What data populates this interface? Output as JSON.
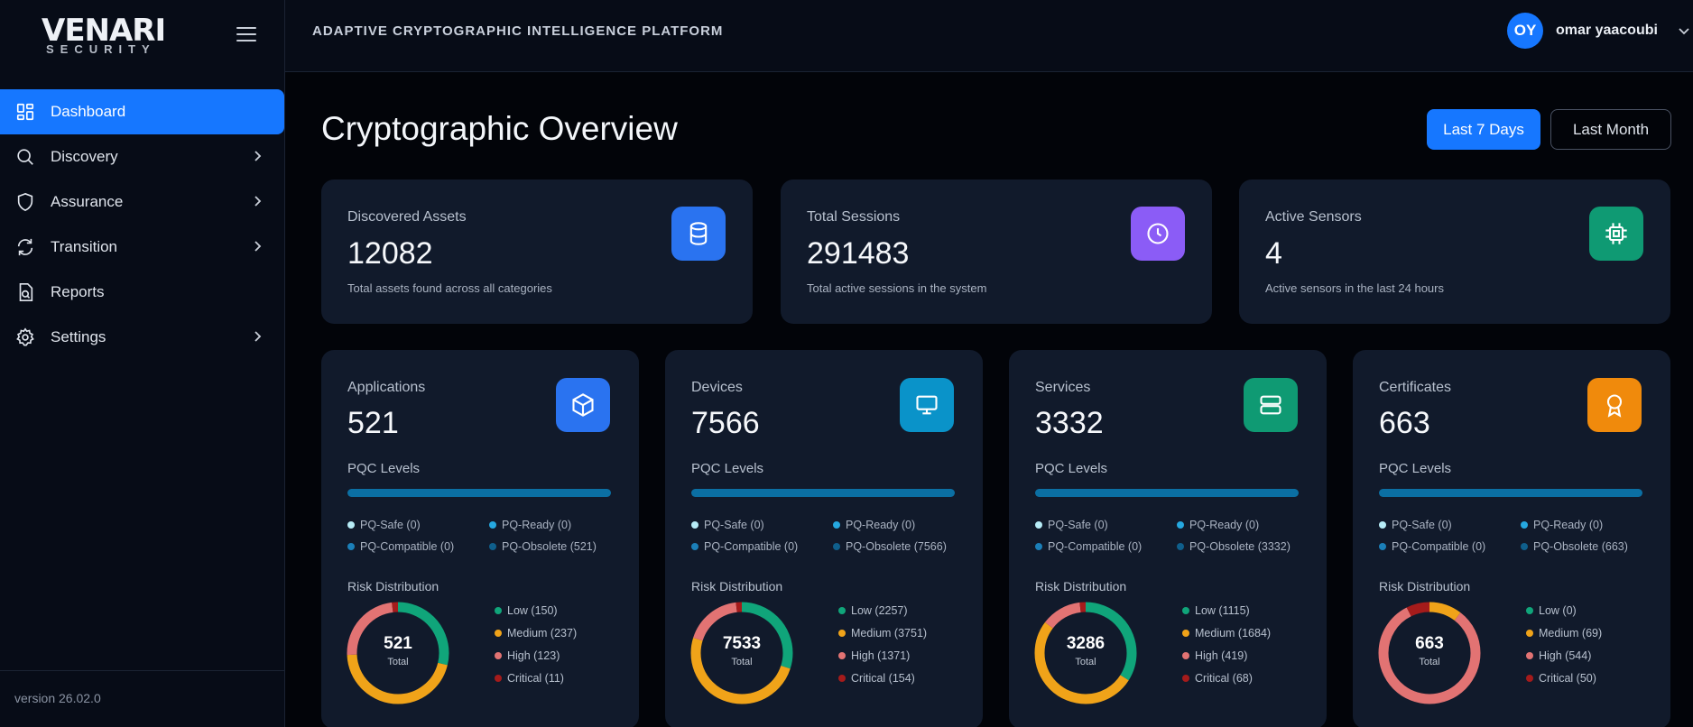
{
  "brand": {
    "name": "VENARI",
    "sub": "SECURITY"
  },
  "header": {
    "platform_title": "ADAPTIVE CRYPTOGRAPHIC INTELLIGENCE PLATFORM",
    "user_initials": "OY",
    "user_name": "omar yaacoubi"
  },
  "sidebar": {
    "items": [
      {
        "label": "Dashboard",
        "icon": "dashboard-grid-icon",
        "active": true
      },
      {
        "label": "Discovery",
        "icon": "search-icon",
        "has_submenu": true
      },
      {
        "label": "Assurance",
        "icon": "shield-icon",
        "has_submenu": true
      },
      {
        "label": "Transition",
        "icon": "refresh-icon",
        "has_submenu": true
      },
      {
        "label": "Reports",
        "icon": "report-icon"
      },
      {
        "label": "Settings",
        "icon": "gear-icon",
        "has_submenu": true
      }
    ],
    "version": "version 26.02.0"
  },
  "main": {
    "title": "Cryptographic Overview",
    "range": {
      "active": "Last 7 Days",
      "other": "Last Month"
    },
    "stats": [
      {
        "label": "Discovered Assets",
        "value": "12082",
        "desc": "Total assets found across all categories",
        "icon": "database-icon",
        "color": "#2a73f0"
      },
      {
        "label": "Total Sessions",
        "value": "291483",
        "desc": "Total active sessions in the system",
        "icon": "clock-icon",
        "color": "#8b5cf6"
      },
      {
        "label": "Active Sensors",
        "value": "4",
        "desc": "Active sensors in the last 24 hours",
        "icon": "chip-icon",
        "color": "#0f9a73"
      }
    ],
    "pqc_title": "PQC Levels",
    "risk_title": "Risk Distribution",
    "total_label": "Total",
    "categories": [
      {
        "label": "Applications",
        "value": "521",
        "icon": "cube-icon",
        "color": "#2a73f0",
        "pqc": [
          "PQ-Safe (0)",
          "PQ-Ready (0)",
          "PQ-Compatible (0)",
          "PQ-Obsolete (521)"
        ],
        "risk_total": "521",
        "risk": [
          "Low (150)",
          "Medium (237)",
          "High (123)",
          "Critical (11)"
        ],
        "risk_values": [
          150,
          237,
          123,
          11
        ]
      },
      {
        "label": "Devices",
        "value": "7566",
        "icon": "monitor-icon",
        "color": "#0a93c9",
        "pqc": [
          "PQ-Safe (0)",
          "PQ-Ready (0)",
          "PQ-Compatible (0)",
          "PQ-Obsolete (7566)"
        ],
        "risk_total": "7533",
        "risk": [
          "Low (2257)",
          "Medium (3751)",
          "High (1371)",
          "Critical (154)"
        ],
        "risk_values": [
          2257,
          3751,
          1371,
          154
        ]
      },
      {
        "label": "Services",
        "value": "3332",
        "icon": "server-icon",
        "color": "#0f9a73",
        "pqc": [
          "PQ-Safe (0)",
          "PQ-Ready (0)",
          "PQ-Compatible (0)",
          "PQ-Obsolete (3332)"
        ],
        "risk_total": "3286",
        "risk": [
          "Low (1115)",
          "Medium (1684)",
          "High (419)",
          "Critical (68)"
        ],
        "risk_values": [
          1115,
          1684,
          419,
          68
        ]
      },
      {
        "label": "Certificates",
        "value": "663",
        "icon": "award-icon",
        "color": "#f08a0c",
        "pqc": [
          "PQ-Safe (0)",
          "PQ-Ready (0)",
          "PQ-Compatible (0)",
          "PQ-Obsolete (663)"
        ],
        "risk_total": "663",
        "risk": [
          "Low (0)",
          "Medium (69)",
          "High (544)",
          "Critical (50)"
        ],
        "risk_values": [
          0,
          69,
          544,
          50
        ]
      }
    ],
    "pqc_colors": [
      "#b7ecf7",
      "#25a8e0",
      "#1b7fb8",
      "#0f5f8c"
    ],
    "risk_colors": [
      "#10a57a",
      "#f0a319",
      "#e27373",
      "#a51b1b"
    ]
  }
}
